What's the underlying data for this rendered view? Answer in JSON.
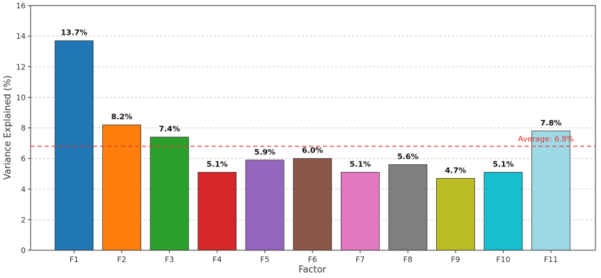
{
  "chart_data": {
    "type": "bar",
    "title": "",
    "xlabel": "Factor",
    "ylabel": "Variance Explained (%)",
    "categories": [
      "F1",
      "F2",
      "F3",
      "F4",
      "F5",
      "F6",
      "F7",
      "F8",
      "F9",
      "F10",
      "F11"
    ],
    "values": [
      13.7,
      8.2,
      7.4,
      5.1,
      5.9,
      6.0,
      5.1,
      5.6,
      4.7,
      5.1,
      7.8
    ],
    "value_labels": [
      "13.7%",
      "8.2%",
      "7.4%",
      "5.1%",
      "5.9%",
      "6.0%",
      "5.1%",
      "5.6%",
      "4.7%",
      "5.1%",
      "7.8%"
    ],
    "colors": [
      "#1f77b4",
      "#ff7f0e",
      "#2ca02c",
      "#d62728",
      "#9467bd",
      "#8c564b",
      "#e377c2",
      "#7f7f7f",
      "#bcbd22",
      "#17becf",
      "#9edae5"
    ],
    "ylim": [
      0,
      16
    ],
    "yticks": [
      0,
      2,
      4,
      6,
      8,
      10,
      12,
      14,
      16
    ],
    "grid": true,
    "reference_line": {
      "value": 6.8,
      "label": "Average: 6.8%",
      "color": "#e8302e"
    }
  }
}
